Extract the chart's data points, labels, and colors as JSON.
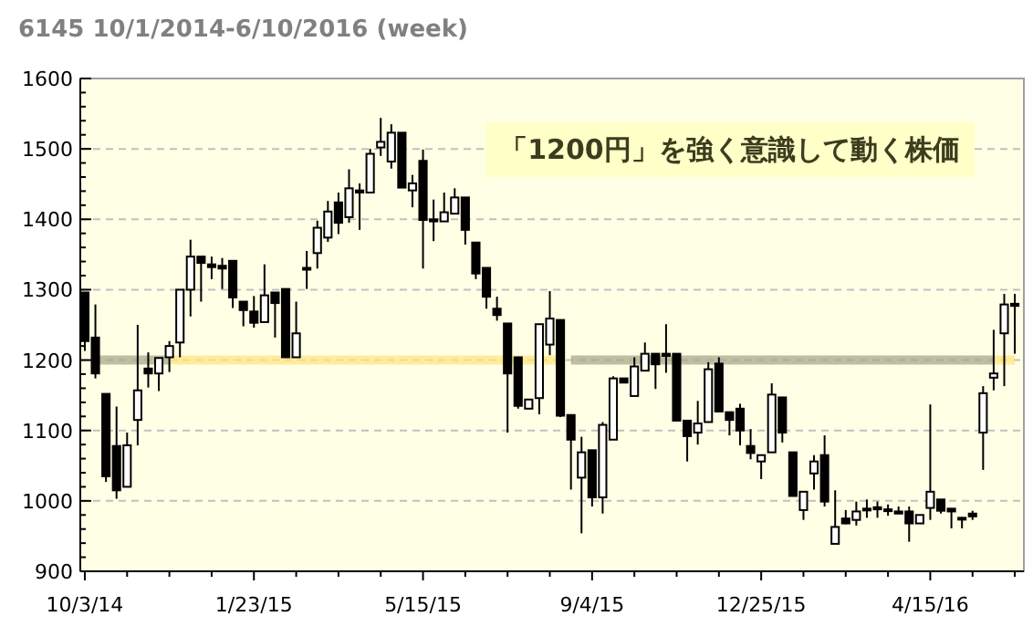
{
  "chart_data": {
    "type": "candlestick",
    "title": "6145 10/1/2014-6/10/2016 (week)",
    "annotations": [
      "「1200円」を強く意識して動く株価"
    ],
    "x": [
      "2014-10-03",
      "2014-10-10",
      "2014-10-17",
      "2014-10-24",
      "2014-10-31",
      "2014-11-07",
      "2014-11-14",
      "2014-11-21",
      "2014-11-28",
      "2014-12-05",
      "2014-12-12",
      "2014-12-19",
      "2014-12-26",
      "2015-01-02",
      "2015-01-09",
      "2015-01-16",
      "2015-01-23",
      "2015-01-30",
      "2015-02-06",
      "2015-02-13",
      "2015-02-20",
      "2015-02-27",
      "2015-03-06",
      "2015-03-13",
      "2015-03-20",
      "2015-03-27",
      "2015-04-03",
      "2015-04-10",
      "2015-04-17",
      "2015-04-24",
      "2015-05-01",
      "2015-05-08",
      "2015-05-15",
      "2015-05-22",
      "2015-05-29",
      "2015-06-05",
      "2015-06-12",
      "2015-06-19",
      "2015-06-26",
      "2015-07-03",
      "2015-07-10",
      "2015-07-17",
      "2015-07-24",
      "2015-07-31",
      "2015-08-07",
      "2015-08-14",
      "2015-08-21",
      "2015-08-28",
      "2015-09-04",
      "2015-09-11",
      "2015-09-18",
      "2015-09-25",
      "2015-10-02",
      "2015-10-09",
      "2015-10-16",
      "2015-10-23",
      "2015-10-30",
      "2015-11-06",
      "2015-11-13",
      "2015-11-20",
      "2015-11-27",
      "2015-12-04",
      "2015-12-11",
      "2015-12-18",
      "2015-12-25",
      "2016-01-01",
      "2016-01-08",
      "2016-01-15",
      "2016-01-22",
      "2016-01-29",
      "2016-02-05",
      "2016-02-12",
      "2016-02-19",
      "2016-02-26",
      "2016-03-04",
      "2016-03-11",
      "2016-03-18",
      "2016-03-25",
      "2016-04-01",
      "2016-04-08",
      "2016-04-15",
      "2016-04-22",
      "2016-04-29",
      "2016-05-06",
      "2016-05-13",
      "2016-05-20",
      "2016-05-27",
      "2016-06-03",
      "2016-06-10"
    ],
    "ohlc": [
      [
        1296,
        1296,
        1213,
        1227
      ],
      [
        1232,
        1279,
        1174,
        1181
      ],
      [
        1152,
        1152,
        1027,
        1035
      ],
      [
        1078,
        1134,
        1003,
        1015
      ],
      [
        1020,
        1097,
        1020,
        1079
      ],
      [
        1115,
        1250,
        1079,
        1157
      ],
      [
        1188,
        1211,
        1161,
        1181
      ],
      [
        1181,
        1203,
        1156,
        1203
      ],
      [
        1204,
        1227,
        1183,
        1220
      ],
      [
        1225,
        1300,
        1204,
        1300
      ],
      [
        1300,
        1371,
        1262,
        1347
      ],
      [
        1347,
        1347,
        1283,
        1338
      ],
      [
        1336,
        1347,
        1315,
        1332
      ],
      [
        1334,
        1345,
        1301,
        1330
      ],
      [
        1341,
        1341,
        1274,
        1289
      ],
      [
        1283,
        1283,
        1248,
        1271
      ],
      [
        1269,
        1291,
        1246,
        1253
      ],
      [
        1254,
        1336,
        1254,
        1292
      ],
      [
        1296,
        1296,
        1232,
        1281
      ],
      [
        1301,
        1301,
        1204,
        1204
      ],
      [
        1204,
        1283,
        1204,
        1238
      ],
      [
        1331,
        1355,
        1301,
        1330
      ],
      [
        1352,
        1398,
        1330,
        1388
      ],
      [
        1374,
        1426,
        1368,
        1411
      ],
      [
        1424,
        1438,
        1379,
        1395
      ],
      [
        1403,
        1471,
        1395,
        1444
      ],
      [
        1441,
        1451,
        1385,
        1438
      ],
      [
        1438,
        1500,
        1438,
        1493
      ],
      [
        1502,
        1544,
        1490,
        1510
      ],
      [
        1482,
        1535,
        1472,
        1523
      ],
      [
        1523,
        1523,
        1445,
        1445
      ],
      [
        1441,
        1463,
        1417,
        1451
      ],
      [
        1483,
        1499,
        1330,
        1399
      ],
      [
        1400,
        1428,
        1369,
        1397
      ],
      [
        1397,
        1438,
        1397,
        1410
      ],
      [
        1408,
        1444,
        1408,
        1431
      ],
      [
        1431,
        1431,
        1364,
        1385
      ],
      [
        1367,
        1367,
        1315,
        1323
      ],
      [
        1331,
        1331,
        1273,
        1290
      ],
      [
        1273,
        1290,
        1256,
        1264
      ],
      [
        1252,
        1252,
        1097,
        1181
      ],
      [
        1204,
        1204,
        1131,
        1135
      ],
      [
        1131,
        1144,
        1131,
        1144
      ],
      [
        1146,
        1251,
        1123,
        1251
      ],
      [
        1222,
        1298,
        1207,
        1259
      ],
      [
        1257,
        1257,
        1119,
        1121
      ],
      [
        1122,
        1122,
        1016,
        1087
      ],
      [
        1033,
        1091,
        954,
        1069
      ],
      [
        1072,
        1072,
        992,
        1005
      ],
      [
        1005,
        1112,
        982,
        1108
      ],
      [
        1087,
        1177,
        1087,
        1174
      ],
      [
        1174,
        1174,
        1168,
        1168
      ],
      [
        1149,
        1204,
        1149,
        1191
      ],
      [
        1185,
        1225,
        1185,
        1209
      ],
      [
        1209,
        1209,
        1159,
        1194
      ],
      [
        1209,
        1251,
        1182,
        1206
      ],
      [
        1209,
        1209,
        1114,
        1114
      ],
      [
        1114,
        1114,
        1056,
        1092
      ],
      [
        1097,
        1142,
        1080,
        1110
      ],
      [
        1112,
        1197,
        1112,
        1187
      ],
      [
        1195,
        1204,
        1127,
        1127
      ],
      [
        1126,
        1126,
        1093,
        1115
      ],
      [
        1131,
        1138,
        1079,
        1100
      ],
      [
        1078,
        1102,
        1059,
        1068
      ],
      [
        1056,
        1065,
        1031,
        1065
      ],
      [
        1069,
        1167,
        1069,
        1151
      ],
      [
        1147,
        1147,
        1083,
        1097
      ],
      [
        1069,
        1069,
        1007,
        1007
      ],
      [
        987,
        1013,
        973,
        1013
      ],
      [
        1039,
        1065,
        1016,
        1056
      ],
      [
        1065,
        1093,
        992,
        999
      ],
      [
        939,
        1015,
        939,
        963
      ],
      [
        975,
        987,
        967,
        968
      ],
      [
        973,
        999,
        965,
        985
      ],
      [
        989,
        1002,
        976,
        988
      ],
      [
        991,
        999,
        976,
        988
      ],
      [
        988,
        995,
        979,
        987
      ],
      [
        985,
        992,
        982,
        982
      ],
      [
        985,
        992,
        942,
        968
      ],
      [
        968,
        980,
        968,
        980
      ],
      [
        990,
        1137,
        973,
        1013
      ],
      [
        1002,
        1002,
        982,
        986
      ],
      [
        989,
        989,
        961,
        985
      ],
      [
        976,
        977,
        961,
        975
      ],
      [
        982,
        986,
        973,
        978
      ],
      [
        1097,
        1163,
        1044,
        1153
      ],
      [
        1175,
        1243,
        1157,
        1181
      ],
      [
        1238,
        1294,
        1163,
        1279
      ],
      [
        1280,
        1294,
        1209,
        1277
      ]
    ],
    "color": "#000000",
    "series": [
      {
        "type": "line",
        "x": [
          "2014-10-10",
          "2014-11-28"
        ],
        "values": [
          1200,
          1200
        ],
        "color": "#a8a88c"
      },
      {
        "type": "line",
        "x": [
          "2014-11-28",
          "2015-08-14"
        ],
        "values": [
          1200,
          1200
        ],
        "color": "#ffe480"
      },
      {
        "type": "line",
        "x": [
          "2015-08-21",
          "2016-05-27"
        ],
        "values": [
          1200,
          1200
        ],
        "color": "#a8a88c"
      },
      {
        "type": "line",
        "x": [
          "2016-05-27",
          "2016-06-10"
        ],
        "values": [
          1200,
          1200
        ],
        "color": "#ffe480"
      }
    ],
    "xlim": [
      "2014-09-30",
      "2016-06-16"
    ],
    "xticks": [
      {
        "value": "2014-10-03",
        "label": "10/3/14"
      },
      {
        "value": "2014-10-31",
        "label": null
      },
      {
        "value": "2014-11-28",
        "label": null
      },
      {
        "value": "2014-12-26",
        "label": null
      },
      {
        "value": "2015-01-23",
        "label": "1/23/15"
      },
      {
        "value": "2015-02-20",
        "label": null
      },
      {
        "value": "2015-03-20",
        "label": null
      },
      {
        "value": "2015-04-17",
        "label": null
      },
      {
        "value": "2015-05-15",
        "label": "5/15/15"
      },
      {
        "value": "2015-06-12",
        "label": null
      },
      {
        "value": "2015-07-10",
        "label": null
      },
      {
        "value": "2015-08-07",
        "label": null
      },
      {
        "value": "2015-09-04",
        "label": "9/4/15"
      },
      {
        "value": "2015-10-02",
        "label": null
      },
      {
        "value": "2015-10-30",
        "label": null
      },
      {
        "value": "2015-11-27",
        "label": null
      },
      {
        "value": "2015-12-25",
        "label": "12/25/15"
      },
      {
        "value": "2016-01-22",
        "label": null
      },
      {
        "value": "2016-02-19",
        "label": null
      },
      {
        "value": "2016-03-18",
        "label": null
      },
      {
        "value": "2016-04-15",
        "label": "4/15/16"
      },
      {
        "value": "2016-05-13",
        "label": null
      },
      {
        "value": "2016-06-10",
        "label": null
      }
    ],
    "ylim": [
      900,
      1600
    ],
    "yticks": [
      900,
      {
        "value": 920,
        "label": null
      },
      {
        "value": 940,
        "label": null
      },
      {
        "value": 960,
        "label": null
      },
      {
        "value": 980,
        "label": null
      },
      1000,
      {
        "value": 1020,
        "label": null
      },
      {
        "value": 1040,
        "label": null
      },
      {
        "value": 1060,
        "label": null
      },
      {
        "value": 1080,
        "label": null
      },
      1100,
      {
        "value": 1120,
        "label": null
      },
      {
        "value": 1140,
        "label": null
      },
      {
        "value": 1160,
        "label": null
      },
      {
        "value": 1180,
        "label": null
      },
      1200,
      {
        "value": 1220,
        "label": null
      },
      {
        "value": 1240,
        "label": null
      },
      {
        "value": 1260,
        "label": null
      },
      {
        "value": 1280,
        "label": null
      },
      1300,
      {
        "value": 1320,
        "label": null
      },
      {
        "value": 1340,
        "label": null
      },
      {
        "value": 1360,
        "label": null
      },
      {
        "value": 1380,
        "label": null
      },
      1400,
      {
        "value": 1420,
        "label": null
      },
      {
        "value": 1440,
        "label": null
      },
      {
        "value": 1460,
        "label": null
      },
      {
        "value": 1480,
        "label": null
      },
      1500,
      {
        "value": 1520,
        "label": null
      },
      {
        "value": 1540,
        "label": null
      },
      {
        "value": 1560,
        "label": null
      },
      {
        "value": 1580,
        "label": null
      },
      1600
    ],
    "grid": "y"
  }
}
